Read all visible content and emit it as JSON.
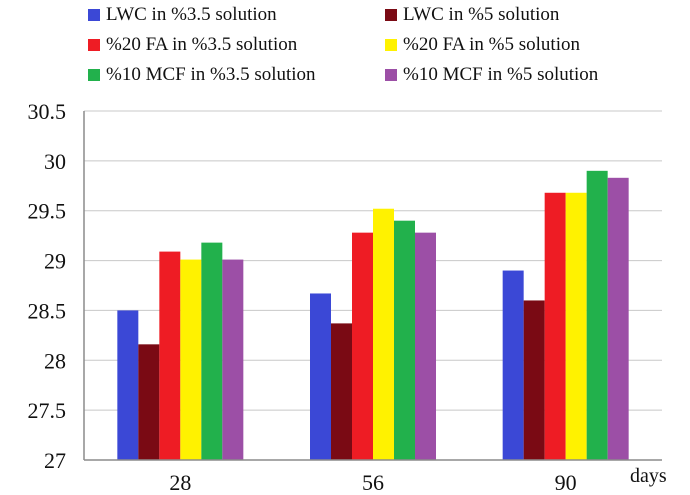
{
  "chart_data": {
    "type": "bar",
    "categories": [
      "28",
      "56",
      "90"
    ],
    "xlabel": "days",
    "ylabel": "",
    "title": "",
    "ylim": [
      27,
      30.5
    ],
    "yticks": [
      "27",
      "27.5",
      "28",
      "28.5",
      "29",
      "29.5",
      "30",
      "30.5"
    ],
    "grid": true,
    "legend_position": "top",
    "series": [
      {
        "name": "LWC in %3.5 solution",
        "color": "#3b48d6",
        "values": [
          28.5,
          28.67,
          28.9
        ]
      },
      {
        "name": "LWC in %5 solution",
        "color": "#7a0a14",
        "values": [
          28.16,
          28.37,
          28.6
        ]
      },
      {
        "name": "%20 FA in %3.5 solution",
        "color": "#ee1c24",
        "values": [
          29.09,
          29.28,
          29.68
        ]
      },
      {
        "name": "%20 FA in %5 solution",
        "color": "#fff200",
        "values": [
          29.01,
          29.52,
          29.68
        ]
      },
      {
        "name": "%10 MCF in %3.5 solution",
        "color": "#22b14c",
        "values": [
          29.18,
          29.4,
          29.9
        ]
      },
      {
        "name": "%10 MCF in %5 solution",
        "color": "#9c4fa6",
        "values": [
          29.01,
          29.28,
          29.83
        ]
      }
    ]
  }
}
